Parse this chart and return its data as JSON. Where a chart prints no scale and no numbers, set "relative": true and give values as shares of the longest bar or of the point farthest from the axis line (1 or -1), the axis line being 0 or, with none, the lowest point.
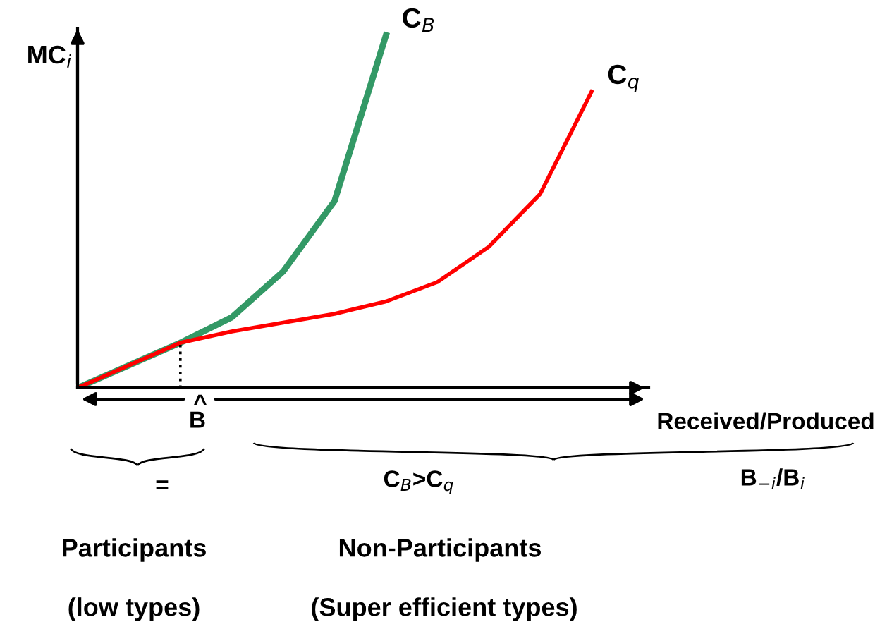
{
  "chart_data": {
    "type": "line",
    "relative": true,
    "ylabel": "MC$_{i}$",
    "xlabel": "Received/Produced",
    "categories": [
      null,
      null,
      null,
      null,
      null,
      null,
      null,
      null,
      null,
      null,
      null
    ],
    "series": [
      {
        "name": "C$_{B}$",
        "color": "#339966",
        "values": [
          0,
          0.064,
          0.128,
          0.2,
          0.33,
          0.53,
          1.0,
          null,
          null,
          null,
          null
        ]
      },
      {
        "name": "C$_{q}$",
        "color": "#ff0000",
        "values": [
          0,
          0.064,
          0.128,
          0.16,
          0.185,
          0.21,
          0.245,
          0.3,
          0.4,
          0.55,
          0.84
        ]
      }
    ],
    "annotations": [
      "^",
      "B",
      "B$_{−i}$/B$_{i}$",
      "=",
      "C$_{B}$>C$_{q}$",
      "Participants",
      "(low types)",
      "Non-Participants",
      "(Super efficient types)"
    ],
    "grid": false,
    "legend": false
  }
}
